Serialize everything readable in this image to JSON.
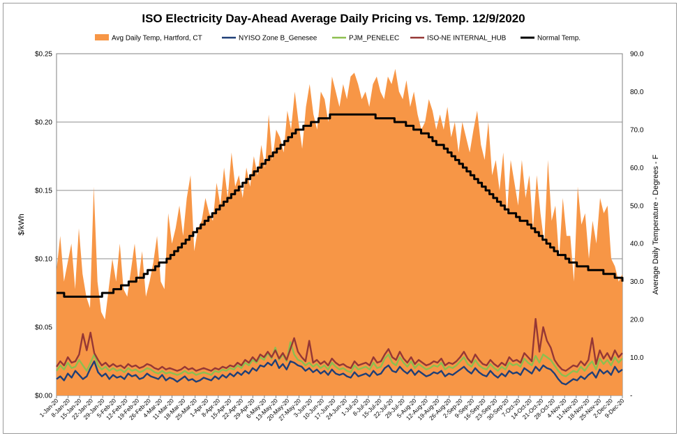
{
  "chart_data": {
    "type": "line",
    "title": "ISO Electricity Day-Ahead Average Daily Pricing vs. Temp. 12/9/2020",
    "ylabel": "$/kWh",
    "y2label": "Average Daily Temperature - Degrees - F",
    "ylim": [
      0,
      0.25
    ],
    "y2lim": [
      0,
      90
    ],
    "yticks": [
      "$0.00",
      "$0.05",
      "$0.10",
      "$0.15",
      "$0.20",
      "$0.25"
    ],
    "y2ticks": [
      "-",
      "10.0",
      "20.0",
      "30.0",
      "40.0",
      "50.0",
      "60.0",
      "70.0",
      "80.0",
      "90.0"
    ],
    "grid": "horizontal",
    "legend_position": "top",
    "x_start": "2020-01-01",
    "x_end": "2020-12-09",
    "x_step_days": 7,
    "xtick_labels": [
      "1-Jan-20",
      "8-Jan-20",
      "15-Jan-20",
      "22-Jan-20",
      "29-Jan-20",
      "5-Feb-20",
      "12-Feb-20",
      "19-Feb-20",
      "26-Feb-20",
      "4-Mar-20",
      "11-Mar-20",
      "18-Mar-20",
      "25-Mar-20",
      "1-Apr-20",
      "8-Apr-20",
      "15-Apr-20",
      "22-Apr-20",
      "29-Apr-20",
      "6-May-20",
      "13-May-20",
      "20-May-20",
      "27-May-20",
      "3-Jun-20",
      "10-Jun-20",
      "17-Jun-20",
      "24-Jun-20",
      "1-Jul-20",
      "8-Jul-20",
      "15-Jul-20",
      "22-Jul-20",
      "29-Jul-20",
      "5-Aug-20",
      "12-Aug-20",
      "19-Aug-20",
      "26-Aug-20",
      "2-Sep-20",
      "9-Sep-20",
      "16-Sep-20",
      "23-Sep-20",
      "30-Sep-20",
      "7-Oct-20",
      "14-Oct-20",
      "21-Oct-20",
      "28-Oct-20",
      "4-Nov-20",
      "11-Nov-20",
      "18-Nov-20",
      "25-Nov-20",
      "2-Dec-20",
      "9-Dec-20"
    ],
    "series": [
      {
        "name": "Avg Daily Temp, Hartford, CT",
        "axis": "right",
        "kind": "area",
        "color": "#F79646",
        "values": [
          33,
          42,
          30,
          35,
          40,
          28,
          44,
          32,
          26,
          23,
          55,
          30,
          22,
          20,
          28,
          36,
          30,
          40,
          28,
          26,
          33,
          40,
          30,
          38,
          26,
          30,
          35,
          42,
          30,
          28,
          48,
          40,
          44,
          50,
          42,
          52,
          58,
          38,
          44,
          46,
          52,
          48,
          46,
          56,
          50,
          60,
          52,
          64,
          55,
          58,
          52,
          60,
          55,
          63,
          58,
          66,
          60,
          74,
          62,
          70,
          68,
          64,
          75,
          70,
          80,
          72,
          65,
          76,
          82,
          74,
          70,
          80,
          78,
          72,
          84,
          80,
          76,
          82,
          78,
          84,
          85,
          82,
          78,
          80,
          76,
          82,
          84,
          80,
          78,
          84,
          82,
          86,
          80,
          78,
          83,
          76,
          80,
          74,
          70,
          72,
          78,
          75,
          70,
          74,
          70,
          76,
          68,
          72,
          64,
          72,
          68,
          64,
          70,
          75,
          66,
          62,
          72,
          58,
          62,
          54,
          64,
          48,
          62,
          56,
          50,
          62,
          52,
          58,
          44,
          58,
          48,
          40,
          62,
          46,
          50,
          36,
          52,
          42,
          42,
          30,
          55,
          45,
          48,
          36,
          46,
          40,
          52,
          48,
          50,
          36,
          34,
          30,
          32
        ]
      },
      {
        "name": "NYISO Zone B_Genesee",
        "axis": "left",
        "kind": "line",
        "color": "#1F3F77",
        "values": [
          0.012,
          0.014,
          0.011,
          0.016,
          0.013,
          0.018,
          0.015,
          0.012,
          0.014,
          0.02,
          0.025,
          0.017,
          0.014,
          0.016,
          0.012,
          0.015,
          0.013,
          0.014,
          0.012,
          0.016,
          0.014,
          0.015,
          0.012,
          0.013,
          0.016,
          0.014,
          0.013,
          0.012,
          0.015,
          0.011,
          0.013,
          0.012,
          0.01,
          0.012,
          0.014,
          0.011,
          0.012,
          0.01,
          0.011,
          0.013,
          0.012,
          0.011,
          0.014,
          0.012,
          0.015,
          0.013,
          0.016,
          0.014,
          0.017,
          0.015,
          0.018,
          0.016,
          0.02,
          0.018,
          0.022,
          0.021,
          0.024,
          0.022,
          0.026,
          0.02,
          0.023,
          0.019,
          0.025,
          0.024,
          0.022,
          0.021,
          0.018,
          0.02,
          0.017,
          0.019,
          0.016,
          0.018,
          0.015,
          0.019,
          0.016,
          0.015,
          0.016,
          0.014,
          0.013,
          0.017,
          0.014,
          0.015,
          0.016,
          0.014,
          0.018,
          0.015,
          0.016,
          0.02,
          0.022,
          0.018,
          0.017,
          0.021,
          0.018,
          0.016,
          0.019,
          0.015,
          0.018,
          0.016,
          0.014,
          0.015,
          0.017,
          0.016,
          0.018,
          0.014,
          0.016,
          0.015,
          0.017,
          0.019,
          0.021,
          0.018,
          0.016,
          0.02,
          0.017,
          0.015,
          0.014,
          0.018,
          0.015,
          0.013,
          0.016,
          0.014,
          0.018,
          0.016,
          0.017,
          0.015,
          0.02,
          0.018,
          0.016,
          0.021,
          0.018,
          0.022,
          0.02,
          0.019,
          0.016,
          0.012,
          0.009,
          0.008,
          0.01,
          0.012,
          0.011,
          0.014,
          0.012,
          0.015,
          0.017,
          0.013,
          0.019,
          0.016,
          0.018,
          0.015,
          0.021,
          0.017,
          0.019
        ]
      },
      {
        "name": "PJM_PENELEC",
        "axis": "left",
        "kind": "line",
        "color": "#8DBF4F",
        "values": [
          0.018,
          0.022,
          0.019,
          0.024,
          0.02,
          0.021,
          0.026,
          0.022,
          0.018,
          0.024,
          0.03,
          0.022,
          0.019,
          0.021,
          0.018,
          0.02,
          0.018,
          0.019,
          0.017,
          0.02,
          0.018,
          0.019,
          0.017,
          0.018,
          0.02,
          0.019,
          0.017,
          0.016,
          0.018,
          0.016,
          0.017,
          0.016,
          0.015,
          0.016,
          0.018,
          0.016,
          0.017,
          0.015,
          0.016,
          0.017,
          0.016,
          0.015,
          0.018,
          0.017,
          0.019,
          0.018,
          0.02,
          0.019,
          0.022,
          0.02,
          0.024,
          0.022,
          0.026,
          0.024,
          0.028,
          0.026,
          0.031,
          0.027,
          0.035,
          0.026,
          0.03,
          0.025,
          0.039,
          0.03,
          0.026,
          0.025,
          0.022,
          0.024,
          0.021,
          0.023,
          0.02,
          0.022,
          0.019,
          0.024,
          0.021,
          0.019,
          0.02,
          0.018,
          0.017,
          0.022,
          0.019,
          0.02,
          0.021,
          0.019,
          0.024,
          0.02,
          0.021,
          0.027,
          0.03,
          0.024,
          0.022,
          0.028,
          0.024,
          0.021,
          0.025,
          0.02,
          0.023,
          0.021,
          0.019,
          0.02,
          0.022,
          0.021,
          0.024,
          0.019,
          0.021,
          0.02,
          0.022,
          0.025,
          0.028,
          0.023,
          0.021,
          0.026,
          0.022,
          0.02,
          0.019,
          0.023,
          0.02,
          0.018,
          0.021,
          0.019,
          0.024,
          0.022,
          0.023,
          0.021,
          0.027,
          0.024,
          0.022,
          0.029,
          0.024,
          0.03,
          0.028,
          0.026,
          0.022,
          0.018,
          0.015,
          0.014,
          0.016,
          0.018,
          0.017,
          0.021,
          0.018,
          0.022,
          0.025,
          0.019,
          0.027,
          0.023,
          0.026,
          0.022,
          0.028,
          0.024,
          0.027
        ]
      },
      {
        "name": "ISO-NE INTERNAL_HUB",
        "axis": "left",
        "kind": "line",
        "color": "#953735",
        "values": [
          0.021,
          0.025,
          0.022,
          0.028,
          0.024,
          0.025,
          0.03,
          0.045,
          0.033,
          0.046,
          0.031,
          0.026,
          0.022,
          0.024,
          0.021,
          0.023,
          0.021,
          0.022,
          0.02,
          0.023,
          0.021,
          0.022,
          0.02,
          0.021,
          0.023,
          0.022,
          0.02,
          0.019,
          0.021,
          0.019,
          0.02,
          0.019,
          0.018,
          0.019,
          0.021,
          0.019,
          0.02,
          0.018,
          0.019,
          0.02,
          0.019,
          0.018,
          0.02,
          0.019,
          0.021,
          0.02,
          0.022,
          0.021,
          0.024,
          0.022,
          0.026,
          0.024,
          0.028,
          0.025,
          0.03,
          0.028,
          0.032,
          0.028,
          0.033,
          0.027,
          0.031,
          0.026,
          0.034,
          0.042,
          0.032,
          0.028,
          0.025,
          0.04,
          0.024,
          0.026,
          0.023,
          0.025,
          0.022,
          0.027,
          0.024,
          0.022,
          0.023,
          0.021,
          0.02,
          0.025,
          0.022,
          0.023,
          0.024,
          0.022,
          0.028,
          0.024,
          0.025,
          0.03,
          0.034,
          0.028,
          0.026,
          0.032,
          0.027,
          0.024,
          0.028,
          0.023,
          0.026,
          0.024,
          0.022,
          0.023,
          0.025,
          0.024,
          0.027,
          0.022,
          0.024,
          0.023,
          0.025,
          0.028,
          0.032,
          0.027,
          0.024,
          0.03,
          0.026,
          0.023,
          0.022,
          0.026,
          0.023,
          0.021,
          0.024,
          0.022,
          0.028,
          0.025,
          0.026,
          0.024,
          0.031,
          0.028,
          0.025,
          0.056,
          0.032,
          0.05,
          0.04,
          0.035,
          0.026,
          0.022,
          0.019,
          0.018,
          0.02,
          0.022,
          0.021,
          0.025,
          0.022,
          0.026,
          0.042,
          0.023,
          0.033,
          0.027,
          0.031,
          0.026,
          0.033,
          0.028,
          0.031
        ]
      },
      {
        "name": "Normal Temp.",
        "axis": "right",
        "kind": "step",
        "color": "#000000",
        "values": [
          27,
          27,
          26,
          26,
          26,
          26,
          26,
          26,
          26,
          26,
          26,
          26,
          27,
          27,
          27,
          28,
          28,
          29,
          29,
          30,
          30,
          31,
          31,
          32,
          33,
          33,
          34,
          35,
          35,
          36,
          37,
          38,
          39,
          40,
          41,
          42,
          43,
          44,
          45,
          46,
          47,
          48,
          49,
          50,
          51,
          52,
          53,
          54,
          55,
          56,
          57,
          58,
          59,
          60,
          61,
          62,
          63,
          64,
          65,
          66,
          67,
          68,
          69,
          70,
          70,
          71,
          71,
          72,
          72,
          73,
          73,
          73,
          74,
          74,
          74,
          74,
          74,
          74,
          74,
          74,
          74,
          74,
          74,
          74,
          73,
          73,
          73,
          73,
          73,
          72,
          72,
          72,
          71,
          71,
          70,
          70,
          69,
          69,
          68,
          67,
          66,
          66,
          65,
          64,
          63,
          62,
          61,
          60,
          59,
          58,
          57,
          56,
          55,
          54,
          53,
          52,
          51,
          50,
          49,
          48,
          48,
          47,
          46,
          46,
          45,
          44,
          43,
          42,
          41,
          40,
          39,
          38,
          37,
          37,
          36,
          35,
          35,
          34,
          34,
          34,
          33,
          33,
          33,
          33,
          32,
          32,
          32,
          31,
          31,
          30
        ]
      }
    ]
  }
}
